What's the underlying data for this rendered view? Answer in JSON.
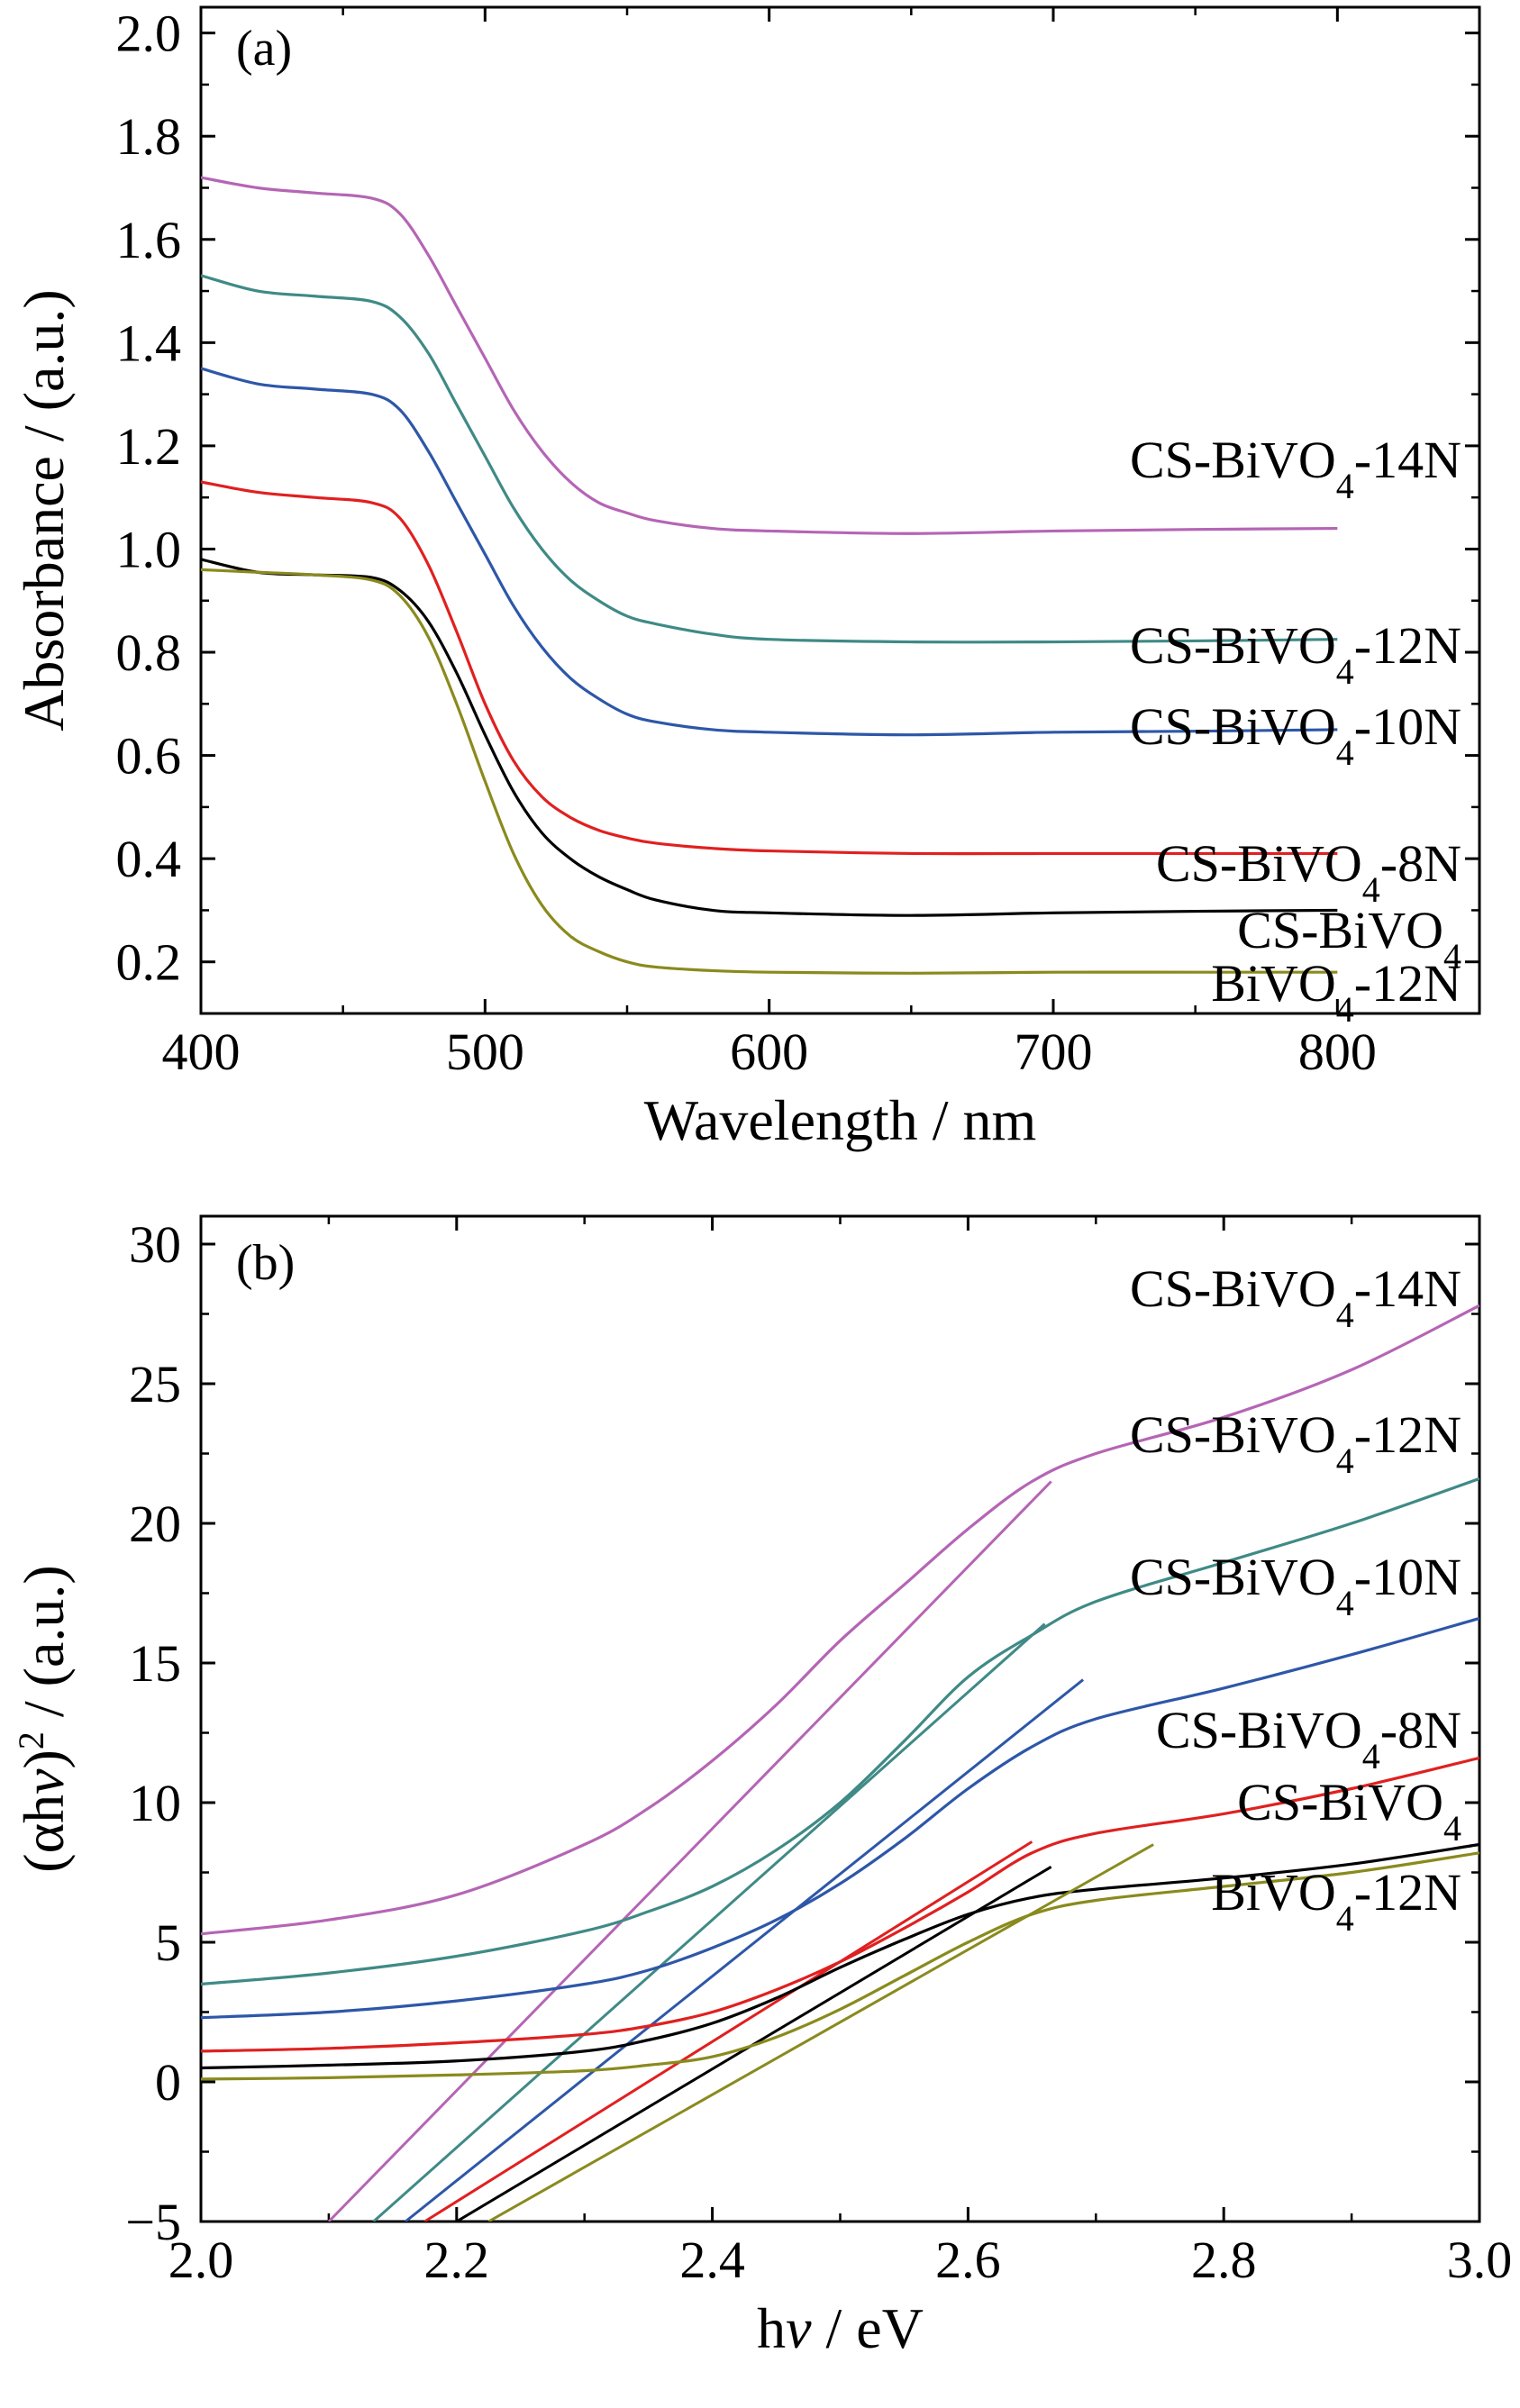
{
  "chart_data": [
    {
      "panel_label": "(a)",
      "type": "line",
      "xlabel": "Wavelength / nm",
      "ylabel": "Absorbance / (a.u.)",
      "xlim": [
        400,
        850
      ],
      "ylim": [
        0.1,
        2.05
      ],
      "xticks": [
        400,
        500,
        600,
        700,
        800
      ],
      "yticks": [
        0.2,
        0.4,
        0.6,
        0.8,
        1.0,
        1.2,
        1.4,
        1.6,
        1.8,
        2.0
      ],
      "xtick_labels": [
        "400",
        "500",
        "600",
        "700",
        "800"
      ],
      "ytick_labels": [
        "0.2",
        "0.4",
        "0.6",
        "0.8",
        "1.0",
        "1.2",
        "1.4",
        "1.6",
        "1.8",
        "2.0"
      ],
      "grid": false,
      "series": [
        {
          "name": "CS-BiVO4-14N",
          "name_base": "CS-BiVO",
          "name_sub": "4",
          "name_suffix": "-14N",
          "color": "#b565b5",
          "x": [
            400,
            420,
            440,
            460,
            470,
            480,
            490,
            500,
            510,
            520,
            530,
            540,
            550,
            560,
            580,
            600,
            650,
            700,
            750,
            800
          ],
          "y": [
            1.72,
            1.7,
            1.69,
            1.68,
            1.65,
            1.57,
            1.47,
            1.37,
            1.27,
            1.19,
            1.13,
            1.09,
            1.07,
            1.055,
            1.04,
            1.035,
            1.03,
            1.035,
            1.038,
            1.04
          ]
        },
        {
          "name": "CS-BiVO4-12N",
          "name_base": "CS-BiVO",
          "name_sub": "4",
          "name_suffix": "-12N",
          "color": "#3f8a86",
          "x": [
            400,
            420,
            440,
            460,
            470,
            480,
            490,
            500,
            510,
            520,
            530,
            540,
            550,
            560,
            580,
            600,
            650,
            700,
            750,
            800
          ],
          "y": [
            1.53,
            1.5,
            1.49,
            1.48,
            1.45,
            1.38,
            1.28,
            1.18,
            1.08,
            1.0,
            0.94,
            0.9,
            0.87,
            0.855,
            0.835,
            0.825,
            0.82,
            0.82,
            0.822,
            0.825
          ]
        },
        {
          "name": "CS-BiVO4-10N",
          "name_base": "CS-BiVO",
          "name_sub": "4",
          "name_suffix": "-10N",
          "color": "#2d57a8",
          "x": [
            400,
            420,
            440,
            460,
            470,
            480,
            490,
            500,
            510,
            520,
            530,
            540,
            550,
            560,
            580,
            600,
            650,
            700,
            750,
            800
          ],
          "y": [
            1.35,
            1.32,
            1.31,
            1.3,
            1.27,
            1.19,
            1.09,
            0.99,
            0.89,
            0.81,
            0.75,
            0.71,
            0.68,
            0.665,
            0.65,
            0.645,
            0.64,
            0.645,
            0.647,
            0.65
          ]
        },
        {
          "name": "CS-BiVO4-8N",
          "name_base": "CS-BiVO",
          "name_sub": "4",
          "name_suffix": "-8N",
          "color": "#e02020",
          "x": [
            400,
            420,
            440,
            460,
            470,
            480,
            490,
            500,
            510,
            520,
            530,
            540,
            550,
            560,
            580,
            600,
            650,
            700,
            750,
            800
          ],
          "y": [
            1.13,
            1.11,
            1.1,
            1.09,
            1.06,
            0.97,
            0.84,
            0.7,
            0.59,
            0.52,
            0.48,
            0.455,
            0.44,
            0.43,
            0.42,
            0.415,
            0.41,
            0.41,
            0.41,
            0.41
          ]
        },
        {
          "name": "CS-BiVO4",
          "name_base": "CS-BiVO",
          "name_sub": "4",
          "name_suffix": "",
          "color": "#000000",
          "x": [
            400,
            420,
            440,
            460,
            470,
            480,
            490,
            500,
            510,
            520,
            530,
            540,
            550,
            560,
            580,
            600,
            650,
            700,
            750,
            800
          ],
          "y": [
            0.98,
            0.955,
            0.95,
            0.945,
            0.92,
            0.86,
            0.76,
            0.64,
            0.53,
            0.45,
            0.4,
            0.365,
            0.34,
            0.32,
            0.3,
            0.295,
            0.29,
            0.295,
            0.298,
            0.3
          ]
        },
        {
          "name": "BiVO4-12N",
          "name_base": "BiVO",
          "name_sub": "4",
          "name_suffix": "-12N",
          "color": "#8a8a1e",
          "x": [
            400,
            420,
            440,
            460,
            470,
            480,
            490,
            500,
            510,
            520,
            530,
            540,
            550,
            560,
            580,
            600,
            650,
            700,
            750,
            800
          ],
          "y": [
            0.96,
            0.955,
            0.95,
            0.94,
            0.91,
            0.83,
            0.7,
            0.55,
            0.41,
            0.31,
            0.25,
            0.22,
            0.2,
            0.19,
            0.183,
            0.18,
            0.178,
            0.18,
            0.18,
            0.18
          ]
        }
      ]
    },
    {
      "panel_label": "(b)",
      "type": "line",
      "xlabel": "hv / eV",
      "xlabel_base": "h",
      "xlabel_italic": "v",
      "xlabel_suffix": " / eV",
      "ylabel": "(αhv)2 / (a.u.)",
      "ylabel_parts": [
        "(αh",
        "v",
        ")",
        "2",
        " / (a.u.)"
      ],
      "xlim": [
        2.0,
        3.0
      ],
      "ylim": [
        -5,
        31
      ],
      "xticks": [
        2.0,
        2.2,
        2.4,
        2.6,
        2.8,
        3.0
      ],
      "yticks": [
        -5,
        0,
        5,
        10,
        15,
        20,
        25,
        30
      ],
      "xtick_labels": [
        "2.0",
        "2.2",
        "2.4",
        "2.6",
        "2.8",
        "3.0"
      ],
      "ytick_labels": [
        "−5",
        "0",
        "5",
        "10",
        "15",
        "20",
        "25",
        "30"
      ],
      "grid": false,
      "series": [
        {
          "name": "CS-BiVO4-14N",
          "name_base": "CS-BiVO",
          "name_sub": "4",
          "name_suffix": "-14N",
          "color": "#b565b5",
          "x": [
            2.0,
            2.1,
            2.2,
            2.3,
            2.35,
            2.4,
            2.45,
            2.5,
            2.55,
            2.6,
            2.65,
            2.7,
            2.8,
            2.9,
            3.0
          ],
          "y": [
            5.3,
            5.8,
            6.7,
            8.5,
            9.8,
            11.5,
            13.5,
            15.8,
            17.8,
            19.8,
            21.5,
            22.5,
            23.8,
            25.5,
            27.8
          ],
          "tangent": [
            [
              2.1,
              -5
            ],
            [
              2.665,
              21.5
            ]
          ]
        },
        {
          "name": "CS-BiVO4-12N",
          "name_base": "CS-BiVO",
          "name_sub": "4",
          "name_suffix": "-12N",
          "color": "#3f8a86",
          "x": [
            2.0,
            2.1,
            2.2,
            2.3,
            2.35,
            2.4,
            2.45,
            2.5,
            2.55,
            2.6,
            2.65,
            2.7,
            2.8,
            2.9,
            3.0
          ],
          "y": [
            3.5,
            3.9,
            4.5,
            5.4,
            6.1,
            7.0,
            8.3,
            10.0,
            12.2,
            14.5,
            16.0,
            17.2,
            18.6,
            20.0,
            21.6
          ],
          "tangent": [
            [
              2.135,
              -5
            ],
            [
              2.66,
              16.4
            ]
          ]
        },
        {
          "name": "CS-BiVO4-10N",
          "name_base": "CS-BiVO",
          "name_sub": "4",
          "name_suffix": "-10N",
          "color": "#2d57a8",
          "x": [
            2.0,
            2.1,
            2.2,
            2.3,
            2.35,
            2.4,
            2.45,
            2.5,
            2.55,
            2.6,
            2.65,
            2.7,
            2.8,
            2.9,
            3.0
          ],
          "y": [
            2.3,
            2.5,
            2.9,
            3.5,
            4.0,
            4.8,
            5.8,
            7.1,
            8.7,
            10.5,
            12.0,
            13.0,
            14.1,
            15.3,
            16.6
          ],
          "tangent": [
            [
              2.16,
              -5
            ],
            [
              2.69,
              14.4
            ]
          ]
        },
        {
          "name": "CS-BiVO4-8N",
          "name_base": "CS-BiVO",
          "name_sub": "4",
          "name_suffix": "-8N",
          "color": "#e02020",
          "x": [
            2.0,
            2.1,
            2.2,
            2.3,
            2.35,
            2.4,
            2.45,
            2.5,
            2.55,
            2.6,
            2.65,
            2.7,
            2.8,
            2.9,
            3.0
          ],
          "y": [
            1.1,
            1.2,
            1.4,
            1.7,
            2.0,
            2.5,
            3.3,
            4.3,
            5.5,
            6.8,
            8.2,
            8.9,
            9.6,
            10.5,
            11.6
          ],
          "tangent": [
            [
              2.175,
              -5
            ],
            [
              2.65,
              8.6
            ]
          ]
        },
        {
          "name": "CS-BiVO4",
          "name_base": "CS-BiVO",
          "name_sub": "4",
          "name_suffix": "",
          "color": "#000000",
          "x": [
            2.0,
            2.1,
            2.2,
            2.3,
            2.35,
            2.4,
            2.45,
            2.5,
            2.55,
            2.6,
            2.65,
            2.7,
            2.8,
            2.9,
            3.0
          ],
          "y": [
            0.5,
            0.6,
            0.75,
            1.1,
            1.5,
            2.1,
            3.0,
            4.1,
            5.1,
            6.0,
            6.6,
            6.9,
            7.3,
            7.8,
            8.5
          ],
          "tangent": [
            [
              2.2,
              -5
            ],
            [
              2.665,
              7.7
            ]
          ]
        },
        {
          "name": "BiVO4-12N",
          "name_base": "BiVO",
          "name_sub": "4",
          "name_suffix": "-12N",
          "color": "#8a8a1e",
          "x": [
            2.0,
            2.1,
            2.2,
            2.3,
            2.35,
            2.4,
            2.45,
            2.5,
            2.55,
            2.6,
            2.65,
            2.7,
            2.8,
            2.9,
            3.0
          ],
          "y": [
            0.1,
            0.15,
            0.25,
            0.4,
            0.6,
            0.9,
            1.6,
            2.6,
            3.8,
            5.0,
            6.0,
            6.5,
            7.0,
            7.5,
            8.2
          ],
          "tangent": [
            [
              2.225,
              -5
            ],
            [
              2.745,
              8.5
            ]
          ]
        }
      ]
    }
  ]
}
